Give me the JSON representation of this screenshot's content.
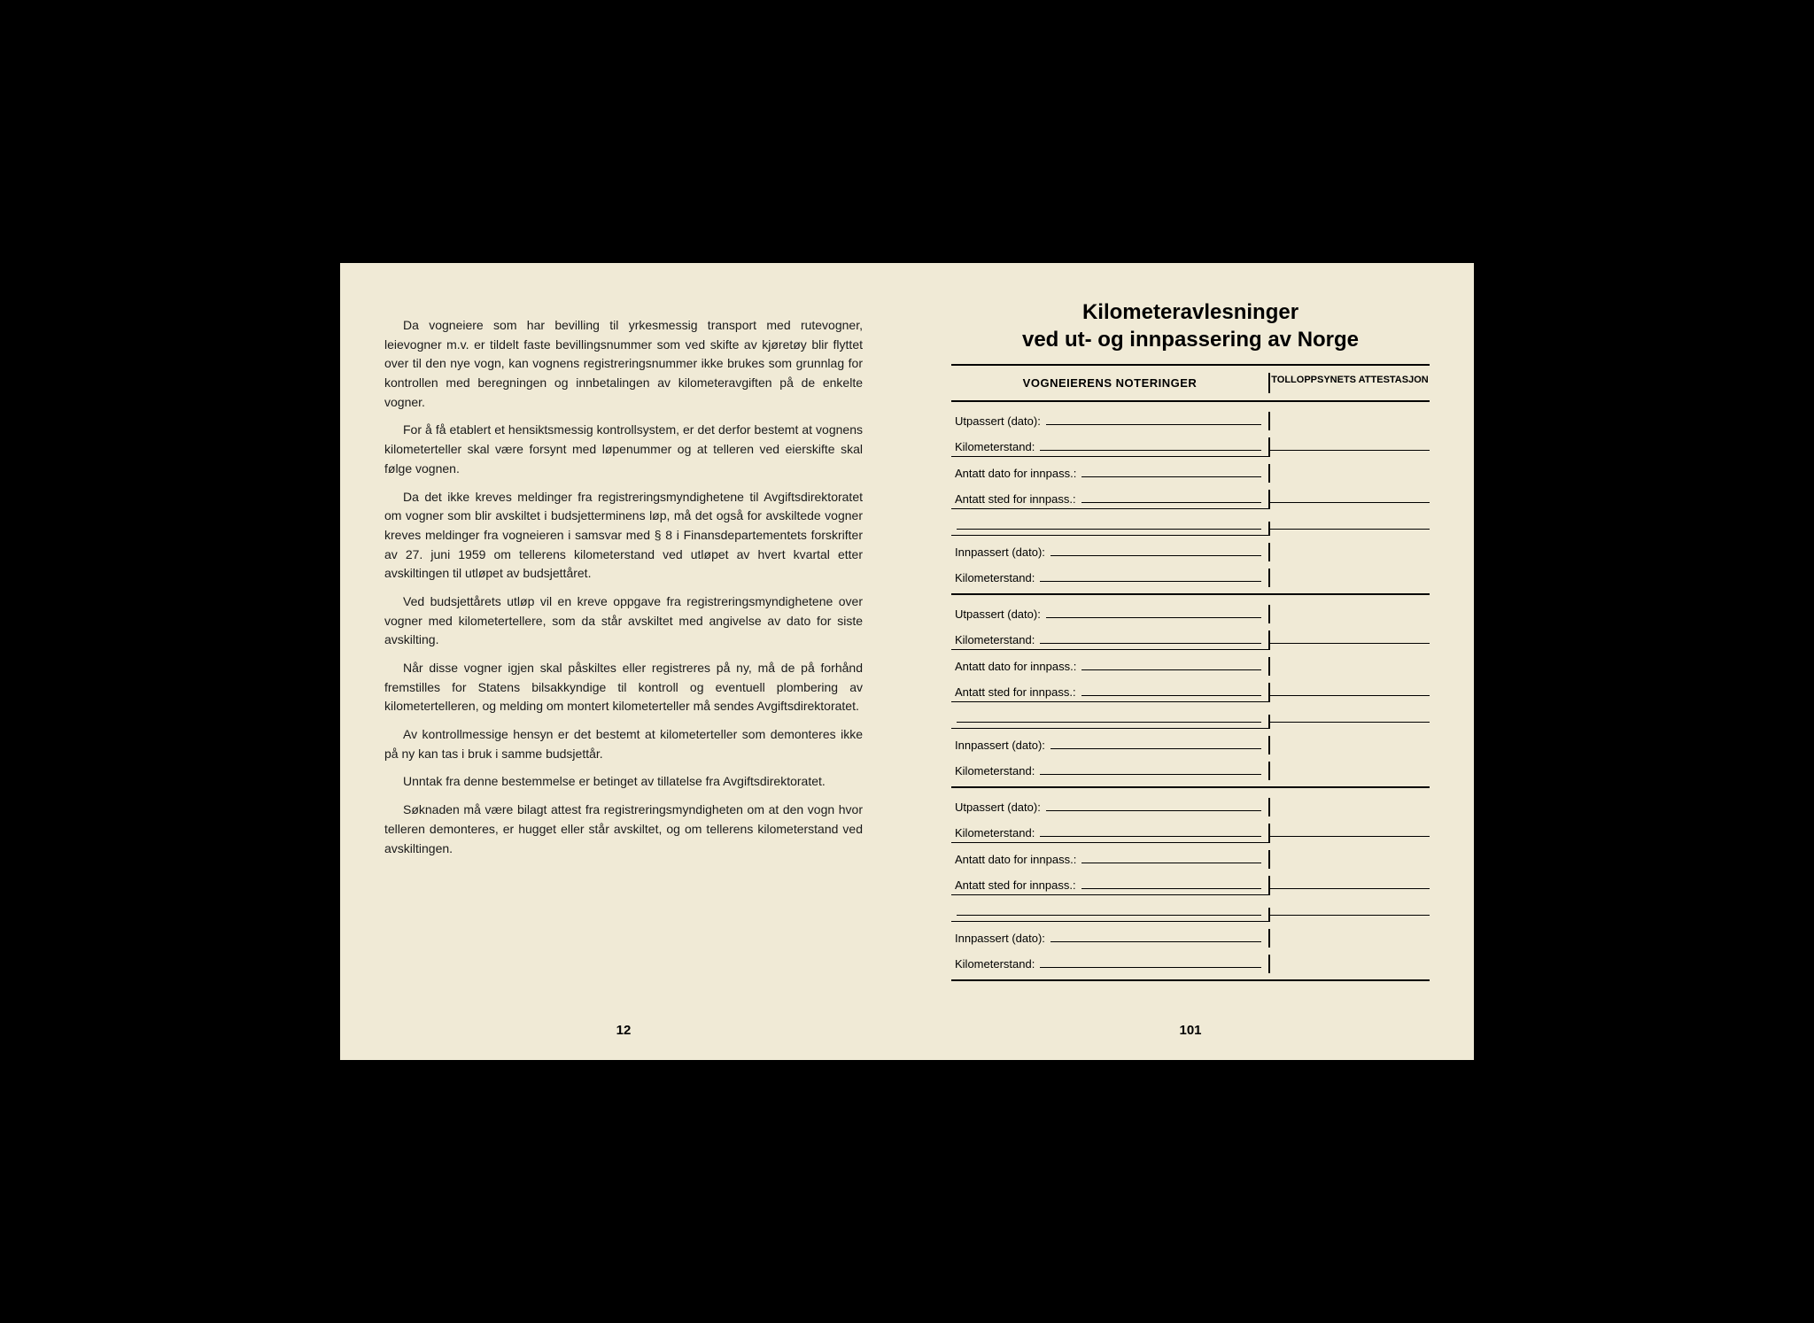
{
  "leftPage": {
    "paragraphs": [
      "Da vogneiere som har bevilling til yrkesmessig transport med rutevogner, leievogner m.v. er tildelt faste bevillingsnummer som ved skifte av kjøretøy blir flyttet over til den nye vogn, kan vognens registreringsnummer ikke brukes som grunnlag for kontrollen med beregningen og innbetalingen av kilometeravgiften på de enkelte vogner.",
      "For å få etablert et hensiktsmessig kontrollsystem, er det derfor bestemt at vognens kilometerteller skal være forsynt med løpenummer og at telleren ved eierskifte skal følge vognen.",
      "Da det ikke kreves meldinger fra registreringsmyndighetene til Avgiftsdirektoratet om vogner som blir avskiltet i budsjetterminens løp, må det også for avskiltede vogner kreves meldinger fra vogneieren i samsvar med § 8 i Finansdepartementets forskrifter av 27. juni 1959 om tellerens kilometerstand ved utløpet av hvert kvartal etter avskiltingen til utløpet av budsjettåret.",
      "Ved budsjettårets utløp vil en kreve oppgave fra registreringsmyndighetene over vogner med kilometertellere, som da står avskiltet med angivelse av dato for siste avskilting.",
      "Når disse vogner igjen skal påskiltes eller registreres på ny, må de på forhånd fremstilles for Statens bilsakkyndige til kontroll og eventuell plombering av kilometertelleren, og melding om montert kilometerteller må sendes Avgiftsdirektoratet.",
      "Av kontrollmessige hensyn er det bestemt at kilometerteller som demonteres ikke på ny kan tas i bruk i samme budsjettår.",
      "Unntak fra denne bestemmelse er betinget av tillatelse fra Avgiftsdirektoratet.",
      "Søknaden må være bilagt attest fra registreringsmyndigheten om at den vogn hvor telleren demonteres, er hugget eller står avskiltet, og om tellerens kilometerstand ved avskiltingen."
    ],
    "pageNumber": "12"
  },
  "rightPage": {
    "titleLine1": "Kilometeravlesninger",
    "titleLine2": "ved ut- og innpassering av Norge",
    "columnHeaderLeft": "VOGNEIERENS NOTERINGER",
    "columnHeaderRight": "TOLLOPPSYNETS ATTESTASJON",
    "labels": {
      "utpassert": "Utpassert (dato):",
      "kilometerstand": "Kilometerstand:",
      "antattDato": "Antatt dato for innpass.:",
      "antattSted": "Antatt sted for innpass.:",
      "innpassert": "Innpassert (dato):"
    },
    "blockCount": 3,
    "pageNumber": "101"
  },
  "colors": {
    "paper": "#f0ead6",
    "ink": "#1a1a1a",
    "background": "#000000"
  }
}
